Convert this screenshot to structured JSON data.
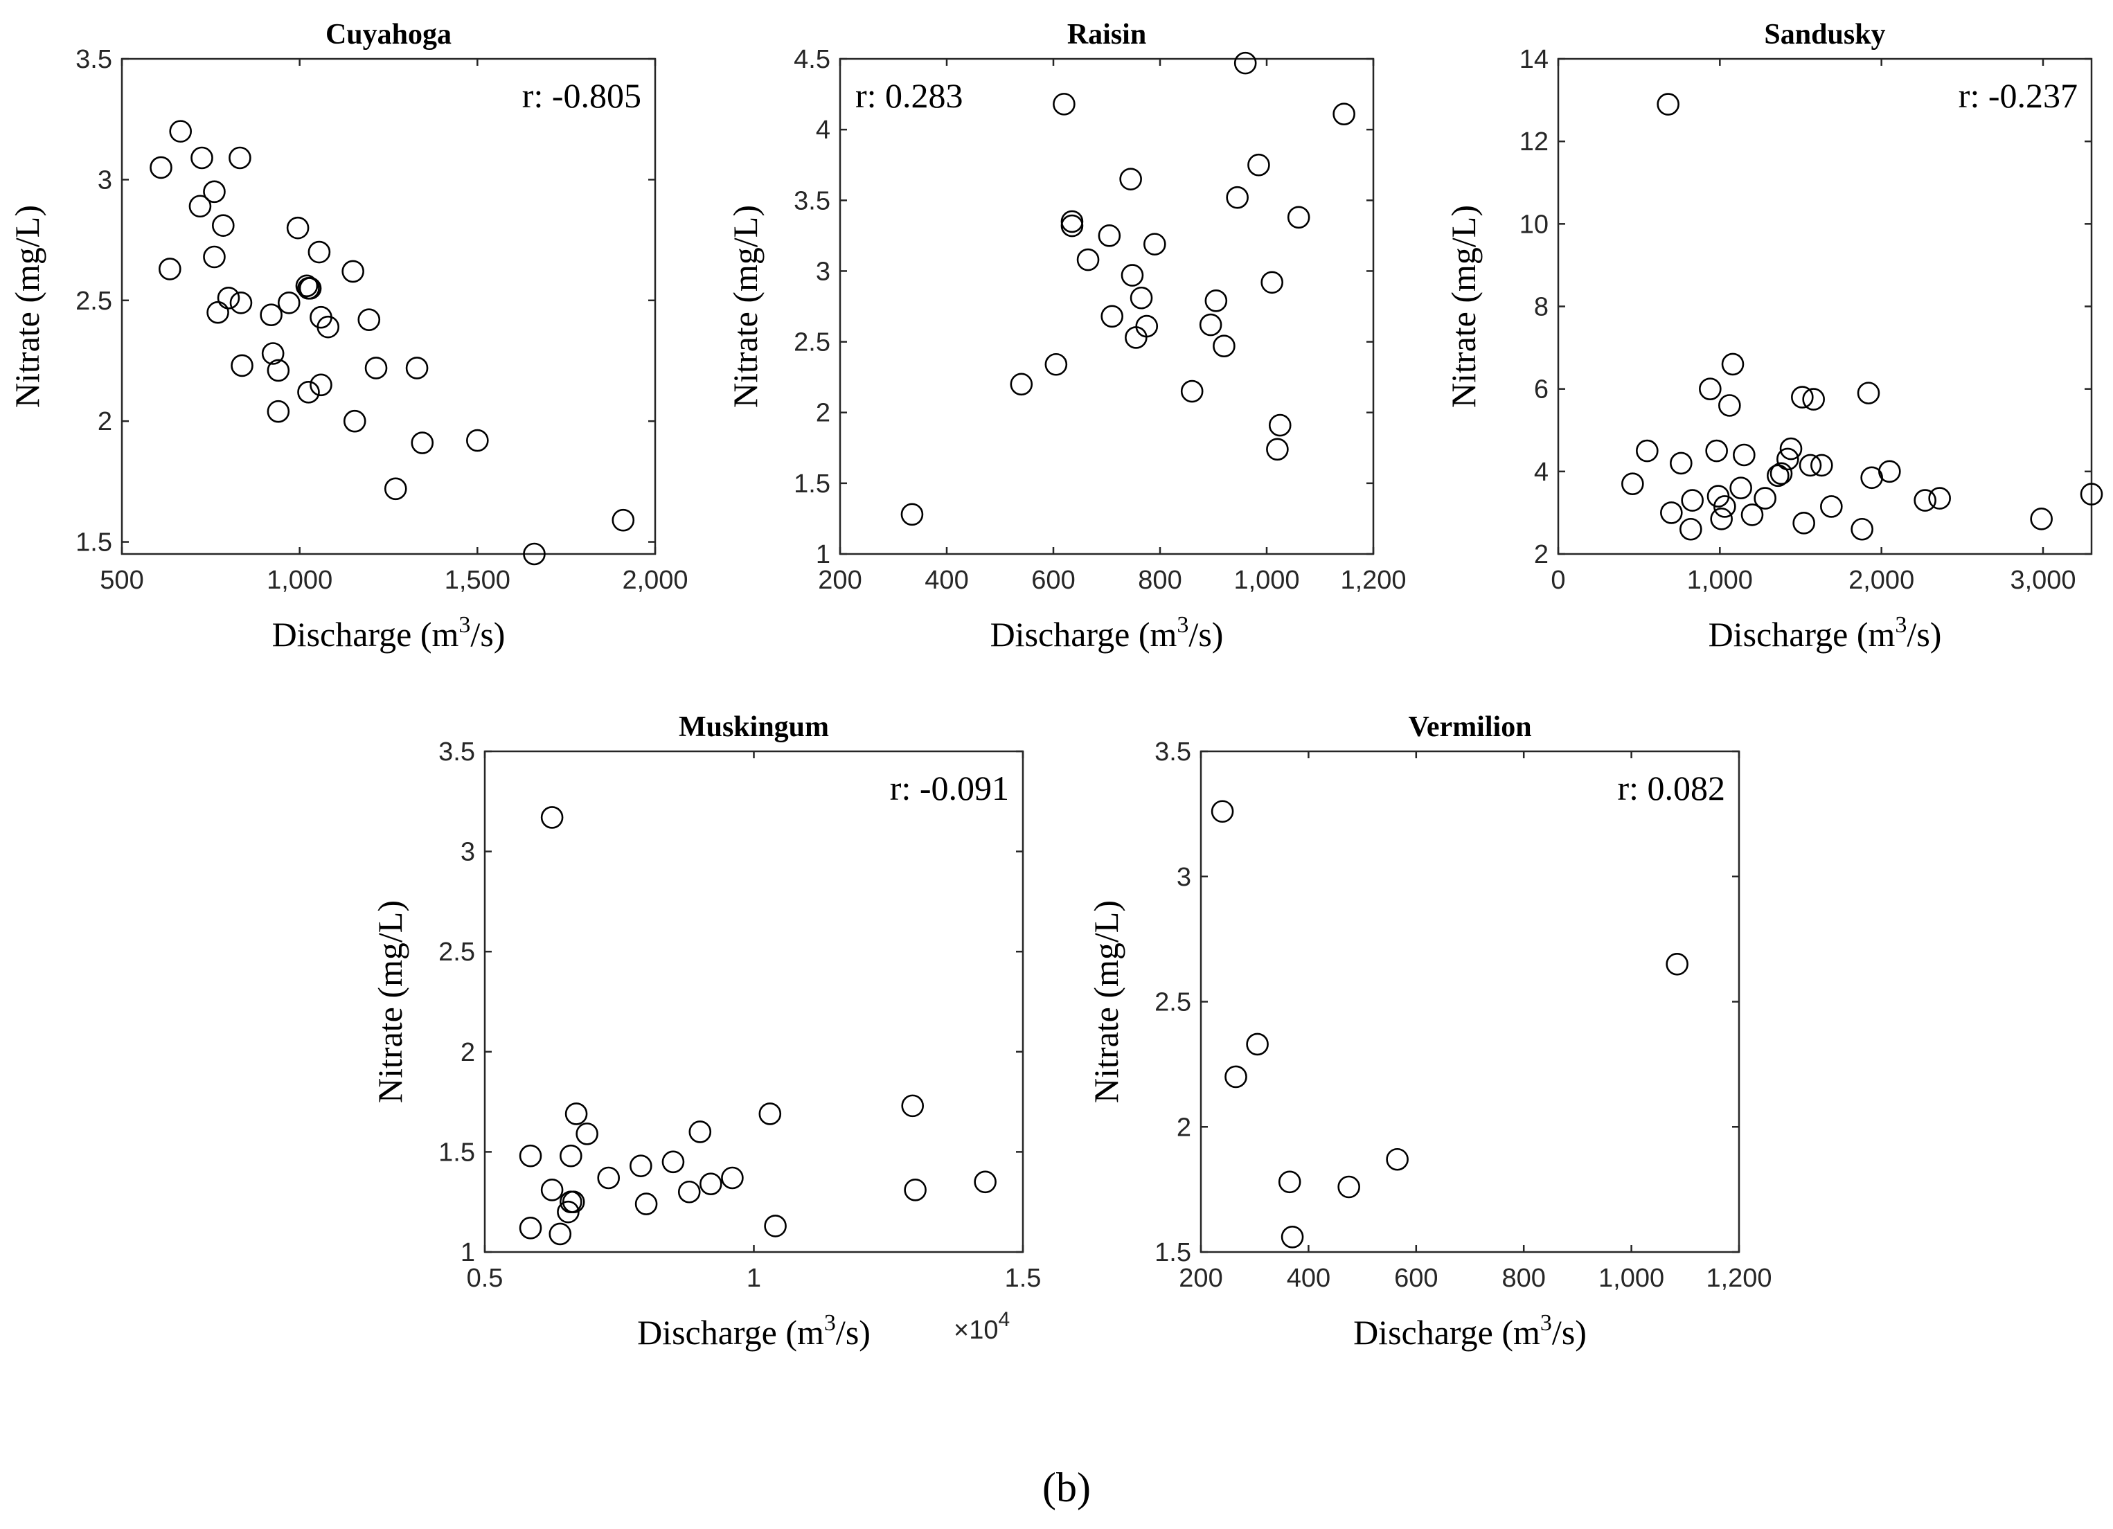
{
  "figure_label": "(b)",
  "chart_data": [
    {
      "type": "scatter",
      "title": "Cuyahoga",
      "xlabel": "Discharge",
      "xlabel_unit": "(m",
      "xlabel_sup": "3",
      "xlabel_unit_end": "/s)",
      "ylabel": "Nitrate (mg/L)",
      "annotation": "r: -0.805",
      "annotation_pos": "top-right",
      "xlim": [
        500,
        2000
      ],
      "ylim": [
        1.45,
        3.5
      ],
      "xticks": [
        500,
        1000,
        1500,
        2000
      ],
      "xtick_labels": [
        "500",
        "1,000",
        "1,500",
        "2,000"
      ],
      "yticks": [
        1.5,
        2,
        2.5,
        3,
        3.5
      ],
      "ytick_labels": [
        "1.5",
        "2",
        "2.5",
        "3",
        "3.5"
      ],
      "x": [
        610,
        665,
        725,
        832,
        720,
        760,
        760,
        785,
        635,
        770,
        800,
        835,
        838,
        920,
        925,
        940,
        940,
        970,
        995,
        1020,
        1025,
        1025,
        1030,
        1055,
        1060,
        1060,
        1080,
        1150,
        1155,
        1195,
        1215,
        1330,
        1345,
        1270,
        1500,
        1660,
        1910
      ],
      "y": [
        3.05,
        3.2,
        3.09,
        3.09,
        2.89,
        2.95,
        2.68,
        2.81,
        2.63,
        2.45,
        2.51,
        2.49,
        2.23,
        2.44,
        2.28,
        2.21,
        2.04,
        2.49,
        2.8,
        2.56,
        2.55,
        2.12,
        2.55,
        2.7,
        2.43,
        2.15,
        2.39,
        2.62,
        2.0,
        2.42,
        2.22,
        2.22,
        1.91,
        1.72,
        1.92,
        1.45,
        1.59
      ]
    },
    {
      "type": "scatter",
      "title": "Raisin",
      "xlabel": "Discharge",
      "xlabel_unit": "(m",
      "xlabel_sup": "3",
      "xlabel_unit_end": "/s)",
      "ylabel": "Nitrate (mg/L)",
      "annotation": "r: 0.283",
      "annotation_pos": "top-left",
      "xlim": [
        200,
        1200
      ],
      "ylim": [
        1,
        4.5
      ],
      "xticks": [
        200,
        400,
        600,
        800,
        1000,
        1200
      ],
      "xtick_labels": [
        "200",
        "400",
        "600",
        "800",
        "1,000",
        "1,200"
      ],
      "yticks": [
        1,
        1.5,
        2,
        2.5,
        3,
        3.5,
        4,
        4.5
      ],
      "ytick_labels": [
        "1",
        "1.5",
        "2",
        "2.5",
        "3",
        "3.5",
        "4",
        "4.5"
      ],
      "x": [
        335,
        540,
        605,
        620,
        635,
        635,
        665,
        705,
        710,
        745,
        748,
        755,
        765,
        775,
        790,
        860,
        895,
        905,
        920,
        945,
        960,
        985,
        1010,
        1020,
        1025,
        1060,
        1145
      ],
      "y": [
        1.28,
        2.2,
        2.34,
        4.18,
        3.35,
        3.32,
        3.08,
        3.25,
        2.68,
        3.65,
        2.97,
        2.53,
        2.81,
        2.61,
        3.19,
        2.15,
        2.62,
        2.79,
        2.47,
        3.52,
        4.47,
        3.75,
        2.92,
        1.74,
        1.91,
        3.38,
        4.11
      ]
    },
    {
      "type": "scatter",
      "title": "Sandusky",
      "xlabel": "Discharge",
      "xlabel_unit": "(m",
      "xlabel_sup": "3",
      "xlabel_unit_end": "/s)",
      "ylabel": "Nitrate (mg/L)",
      "annotation": "r: -0.237",
      "annotation_pos": "top-right",
      "xlim": [
        0,
        3300
      ],
      "ylim": [
        2,
        14
      ],
      "xticks": [
        0,
        1000,
        2000,
        3000
      ],
      "xtick_labels": [
        "0",
        "1,000",
        "2,000",
        "3,000"
      ],
      "yticks": [
        2,
        4,
        6,
        8,
        10,
        12,
        14
      ],
      "ytick_labels": [
        "2",
        "4",
        "6",
        "8",
        "10",
        "12",
        "14"
      ],
      "x": [
        460,
        550,
        680,
        700,
        760,
        820,
        830,
        940,
        980,
        990,
        1010,
        1030,
        1060,
        1080,
        1130,
        1150,
        1200,
        1280,
        1360,
        1380,
        1420,
        1440,
        1510,
        1520,
        1560,
        1580,
        1630,
        1690,
        1880,
        1920,
        1940,
        2050,
        2270,
        2360,
        2990,
        3300
      ],
      "y": [
        3.7,
        4.5,
        12.9,
        3.0,
        4.2,
        2.6,
        3.3,
        6.0,
        4.5,
        3.4,
        2.85,
        3.15,
        5.6,
        6.6,
        3.6,
        4.4,
        2.95,
        3.35,
        3.9,
        3.95,
        4.3,
        4.55,
        5.8,
        2.75,
        4.15,
        5.75,
        4.15,
        3.15,
        2.6,
        5.9,
        3.85,
        4.0,
        3.3,
        3.35,
        2.85,
        3.45
      ]
    },
    {
      "type": "scatter",
      "title": "Muskingum",
      "xlabel": "Discharge",
      "xlabel_unit": "(m",
      "xlabel_sup": "3",
      "xlabel_unit_end": "/s)",
      "ylabel": "Nitrate (mg/L)",
      "annotation": "r: -0.091",
      "annotation_pos": "top-right",
      "x_multiplier": "×10",
      "x_multiplier_exp": "4",
      "xlim": [
        0.5,
        1.5
      ],
      "ylim": [
        1,
        3.5
      ],
      "xticks": [
        0.5,
        1,
        1.5
      ],
      "xtick_labels": [
        "0.5",
        "1",
        "1.5"
      ],
      "yticks": [
        1,
        1.5,
        2,
        2.5,
        3,
        3.5
      ],
      "ytick_labels": [
        "1",
        "1.5",
        "2",
        "2.5",
        "3",
        "3.5"
      ],
      "x": [
        0.585,
        0.585,
        0.625,
        0.625,
        0.64,
        0.655,
        0.66,
        0.66,
        0.665,
        0.67,
        0.69,
        0.73,
        0.79,
        0.8,
        0.85,
        0.88,
        0.9,
        0.92,
        0.96,
        1.03,
        1.04,
        1.295,
        1.3,
        1.43
      ],
      "y": [
        1.12,
        1.48,
        3.17,
        1.31,
        1.09,
        1.2,
        1.25,
        1.48,
        1.25,
        1.69,
        1.59,
        1.37,
        1.43,
        1.24,
        1.45,
        1.3,
        1.6,
        1.34,
        1.37,
        1.69,
        1.13,
        1.73,
        1.31,
        1.35
      ]
    },
    {
      "type": "scatter",
      "title": "Vermilion",
      "xlabel": "Discharge",
      "xlabel_unit": "(m",
      "xlabel_sup": "3",
      "xlabel_unit_end": "/s)",
      "ylabel": "Nitrate (mg/L)",
      "annotation": "r: 0.082",
      "annotation_pos": "top-right",
      "xlim": [
        200,
        1200
      ],
      "ylim": [
        1.5,
        3.5
      ],
      "xticks": [
        200,
        400,
        600,
        800,
        1000,
        1200
      ],
      "xtick_labels": [
        "200",
        "400",
        "600",
        "800",
        "1,000",
        "1,200"
      ],
      "yticks": [
        1.5,
        2,
        2.5,
        3,
        3.5
      ],
      "ytick_labels": [
        "1.5",
        "2",
        "2.5",
        "3",
        "3.5"
      ],
      "x": [
        240,
        265,
        305,
        365,
        370,
        475,
        565,
        1085
      ],
      "y": [
        3.26,
        2.2,
        2.33,
        1.78,
        1.56,
        1.76,
        1.87,
        2.65
      ]
    }
  ]
}
